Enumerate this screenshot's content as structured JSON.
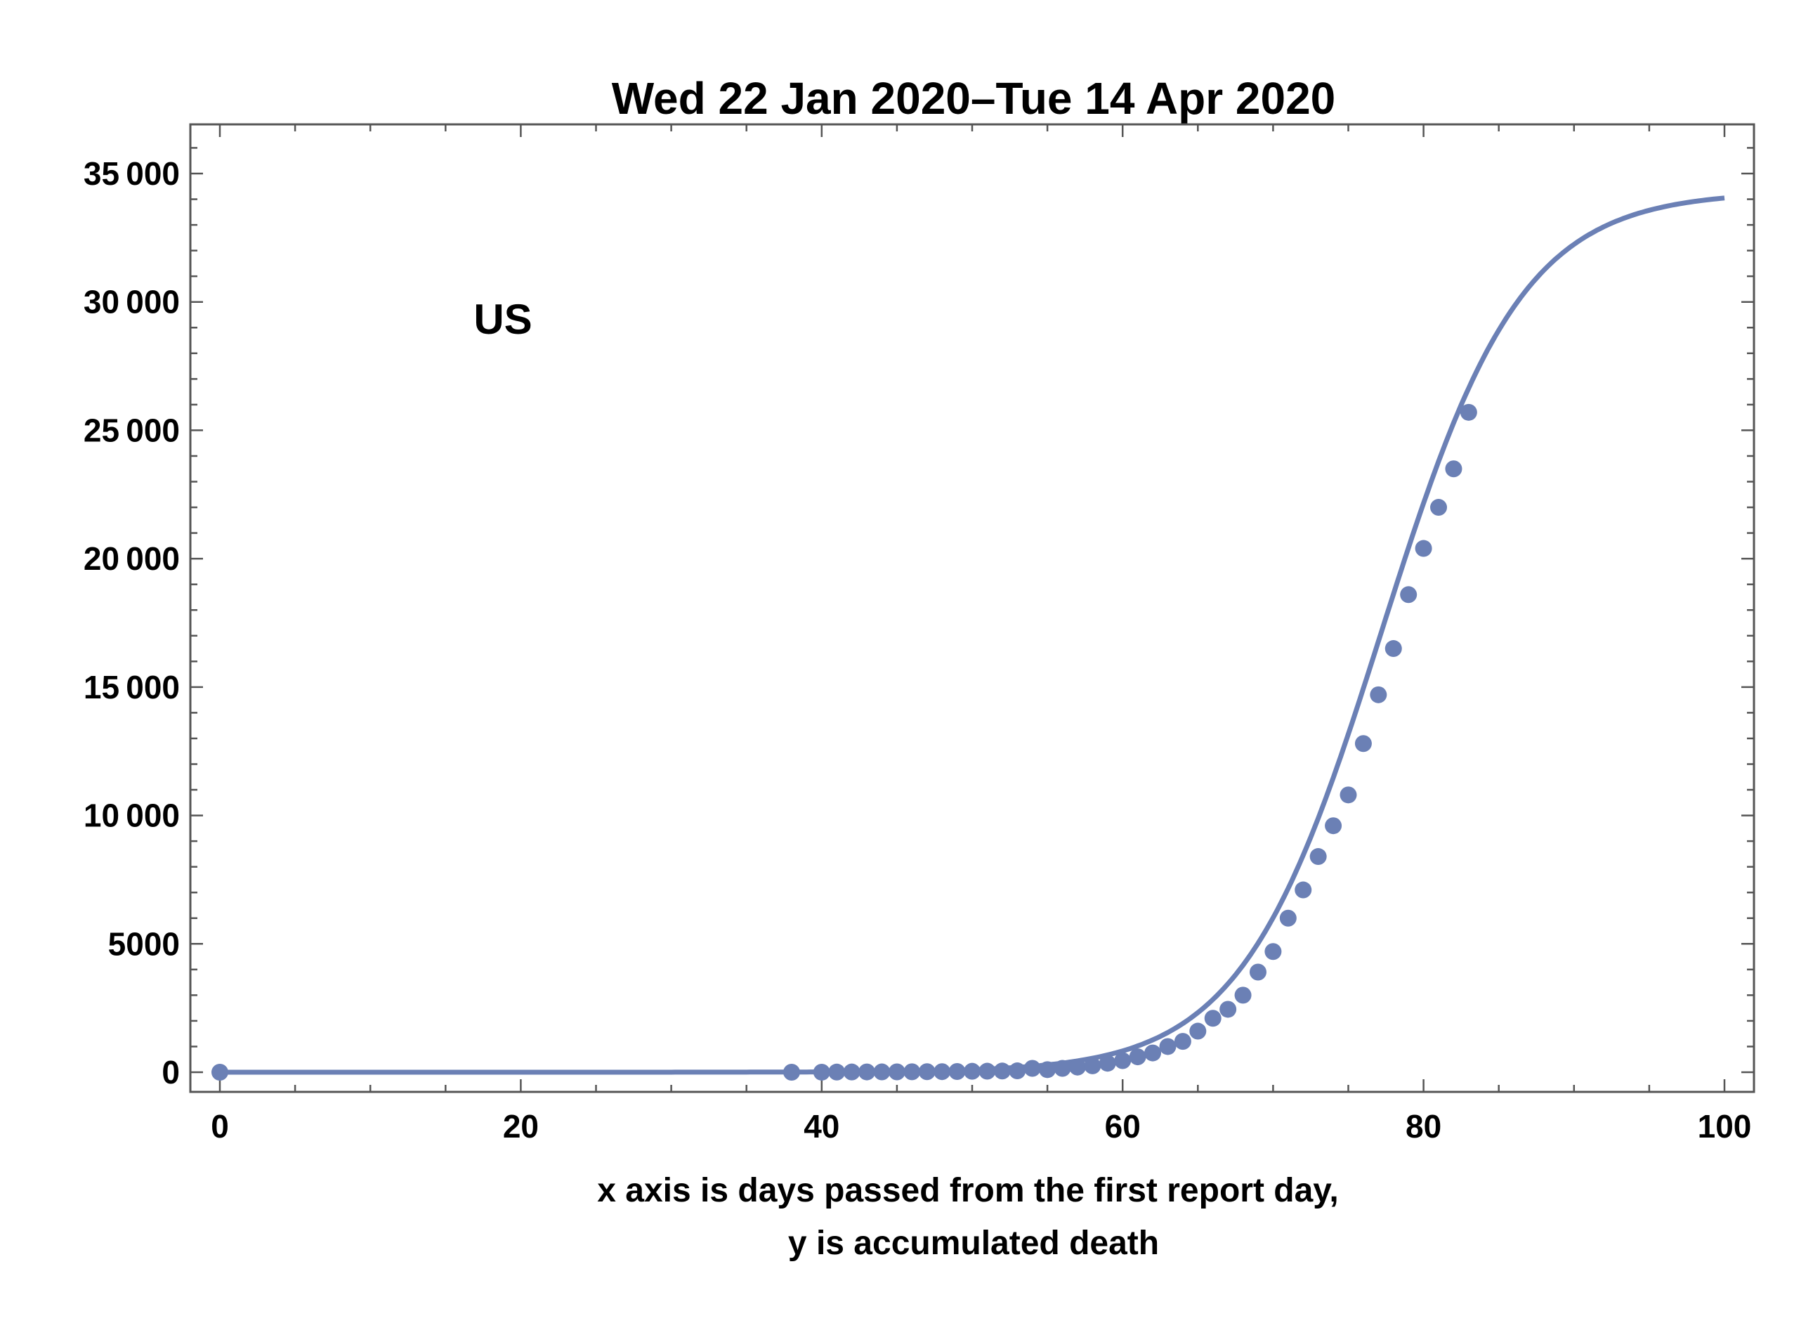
{
  "chart_data": {
    "type": "scatter",
    "title": "Wed 22 Jan 2020–Tue 14 Apr 2020",
    "xlabel_lines": [
      "x axis is days passed from the first report day,",
      "y is accumulated death"
    ],
    "ylabel": "",
    "annotation": "US",
    "xlim": [
      0,
      100
    ],
    "ylim": [
      -800,
      36800
    ],
    "x_ticks": [
      0,
      20,
      40,
      60,
      80,
      100
    ],
    "x_tick_labels": [
      "0",
      "20",
      "40",
      "60",
      "80",
      "100"
    ],
    "y_ticks": [
      0,
      5000,
      10000,
      15000,
      20000,
      25000,
      30000,
      35000
    ],
    "y_tick_labels": [
      "0",
      "5000",
      "10 000",
      "15 000",
      "20 000",
      "25 000",
      "30 000",
      "35 000"
    ],
    "grid": false,
    "color": "#6b80b5",
    "series": [
      {
        "kind": "points",
        "x": [
          0,
          38,
          40,
          41,
          42,
          43,
          44,
          45,
          46,
          47,
          48,
          49,
          50,
          51,
          52,
          53,
          54,
          55,
          56,
          57,
          58,
          59,
          60,
          61,
          62,
          63,
          64,
          65,
          66,
          67,
          68,
          69,
          70,
          71,
          72,
          73,
          74,
          75,
          76,
          77,
          78,
          79,
          80,
          81,
          82,
          83
        ],
        "y": [
          0,
          0,
          1,
          6,
          9,
          11,
          12,
          14,
          17,
          21,
          22,
          28,
          36,
          40,
          47,
          54,
          150,
          100,
          150,
          200,
          250,
          350,
          450,
          600,
          750,
          1000,
          1200,
          1600,
          2100,
          2450,
          3000,
          3900,
          4700,
          6000,
          7100,
          8400,
          9600,
          10800,
          12800,
          14700,
          16500,
          18600,
          20400,
          22000,
          23500,
          25700
        ]
      },
      {
        "kind": "fitted-curve",
        "model": "logistic",
        "K": 34300,
        "x0": 77.2,
        "k": 0.215,
        "x_range": [
          0,
          100
        ]
      }
    ]
  }
}
